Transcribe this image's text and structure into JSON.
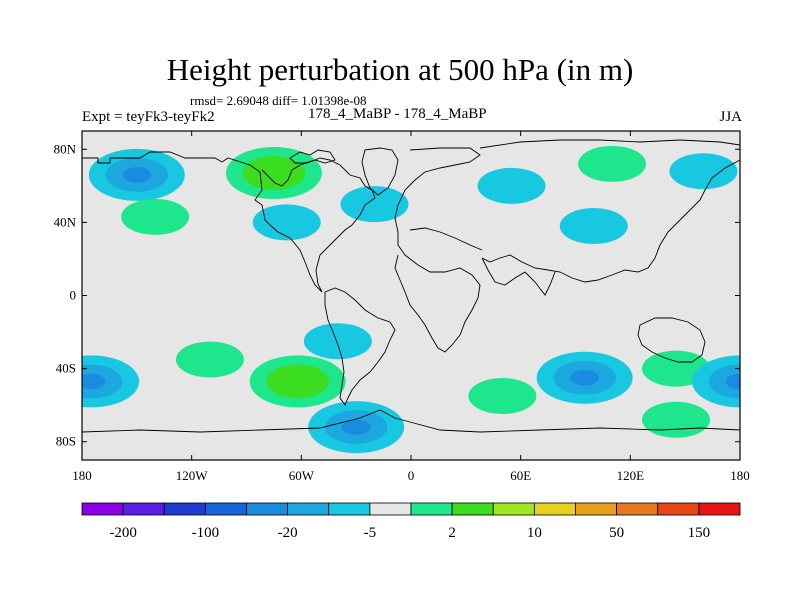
{
  "title": "Height perturbation at 500 hPa (in m)",
  "stats": "rmsd= 2.69048 diff= 1.01398e-08",
  "expt_label": "Expt = teyFk3-teyFk2",
  "center_label": "178_4_MaBP - 178_4_MaBP",
  "season": "JJA",
  "map": {
    "lat_ticks": [
      {
        "value": 80,
        "label": "80N"
      },
      {
        "value": 40,
        "label": "40N"
      },
      {
        "value": 0,
        "label": "0"
      },
      {
        "value": -40,
        "label": "40S"
      },
      {
        "value": -80,
        "label": "80S"
      }
    ],
    "lon_ticks": [
      {
        "value": -180,
        "label": "180"
      },
      {
        "value": -120,
        "label": "120W"
      },
      {
        "value": -60,
        "label": "60W"
      },
      {
        "value": 0,
        "label": "0"
      },
      {
        "value": 60,
        "label": "60E"
      },
      {
        "value": 120,
        "label": "120E"
      },
      {
        "value": 180,
        "label": "180"
      }
    ]
  },
  "colorbar": {
    "colors": [
      "#8c00e6",
      "#5a1ee6",
      "#1e3cd2",
      "#1464dc",
      "#1a8ce0",
      "#1aa8de",
      "#18c8e0",
      "#e6e6e6",
      "#1ee68c",
      "#3cdc1e",
      "#a0e61e",
      "#e6d21e",
      "#e6a01e",
      "#e6781e",
      "#e64614",
      "#e61414"
    ],
    "labels": [
      {
        "after_box": 1,
        "text": "-200"
      },
      {
        "after_box": 3,
        "text": "-100"
      },
      {
        "after_box": 5,
        "text": "-20"
      },
      {
        "after_box": 7,
        "text": "-5"
      },
      {
        "after_box": 9,
        "text": "2"
      },
      {
        "after_box": 11,
        "text": "10"
      },
      {
        "after_box": 13,
        "text": "50"
      },
      {
        "after_box": 15,
        "text": "150"
      }
    ]
  },
  "anomalies": [
    {
      "name": "nh-north-pacific-low",
      "lon": -150,
      "lat": 66,
      "sign": "neg",
      "strength": 2
    },
    {
      "name": "nh-far-east-pacific-low",
      "lon": 160,
      "lat": 68,
      "sign": "neg",
      "strength": 1
    },
    {
      "name": "nh-pacific-band-low",
      "lon": -140,
      "lat": 43,
      "sign": "pos",
      "strength": 1
    },
    {
      "name": "nh-north-america-high",
      "lon": -75,
      "lat": 67,
      "sign": "pos",
      "strength": 2
    },
    {
      "name": "nh-north-america-low",
      "lon": -68,
      "lat": 40,
      "sign": "neg",
      "strength": 1
    },
    {
      "name": "nh-atlantic-low",
      "lon": -20,
      "lat": 50,
      "sign": "neg",
      "strength": 1
    },
    {
      "name": "nh-europe-low",
      "lon": 55,
      "lat": 60,
      "sign": "neg",
      "strength": 1
    },
    {
      "name": "nh-siberia-high",
      "lon": 110,
      "lat": 72,
      "sign": "pos",
      "strength": 1
    },
    {
      "name": "nh-central-asia-low",
      "lon": 100,
      "lat": 38,
      "sign": "neg",
      "strength": 1
    },
    {
      "name": "sh-pacific-low-west",
      "lon": -175,
      "lat": -47,
      "sign": "neg",
      "strength": 2
    },
    {
      "name": "sh-pacific-ridge",
      "lon": -110,
      "lat": -35,
      "sign": "pos",
      "strength": 1
    },
    {
      "name": "sh-south-america-high",
      "lon": -62,
      "lat": -47,
      "sign": "pos",
      "strength": 2
    },
    {
      "name": "sh-southern-ocean-low",
      "lon": -30,
      "lat": -72,
      "sign": "neg",
      "strength": 2
    },
    {
      "name": "sh-atlantic-low",
      "lon": -40,
      "lat": -25,
      "sign": "neg",
      "strength": 1
    },
    {
      "name": "sh-africa-high",
      "lon": 50,
      "lat": -55,
      "sign": "pos",
      "strength": 1
    },
    {
      "name": "sh-indian-low",
      "lon": 95,
      "lat": -45,
      "sign": "neg",
      "strength": 2
    },
    {
      "name": "sh-indian-high",
      "lon": 145,
      "lat": -40,
      "sign": "pos",
      "strength": 1
    },
    {
      "name": "sh-indian-high-2",
      "lon": 145,
      "lat": -68,
      "sign": "pos",
      "strength": 1
    },
    {
      "name": "sh-far-east-low",
      "lon": 180,
      "lat": -47,
      "sign": "neg",
      "strength": 2
    }
  ]
}
